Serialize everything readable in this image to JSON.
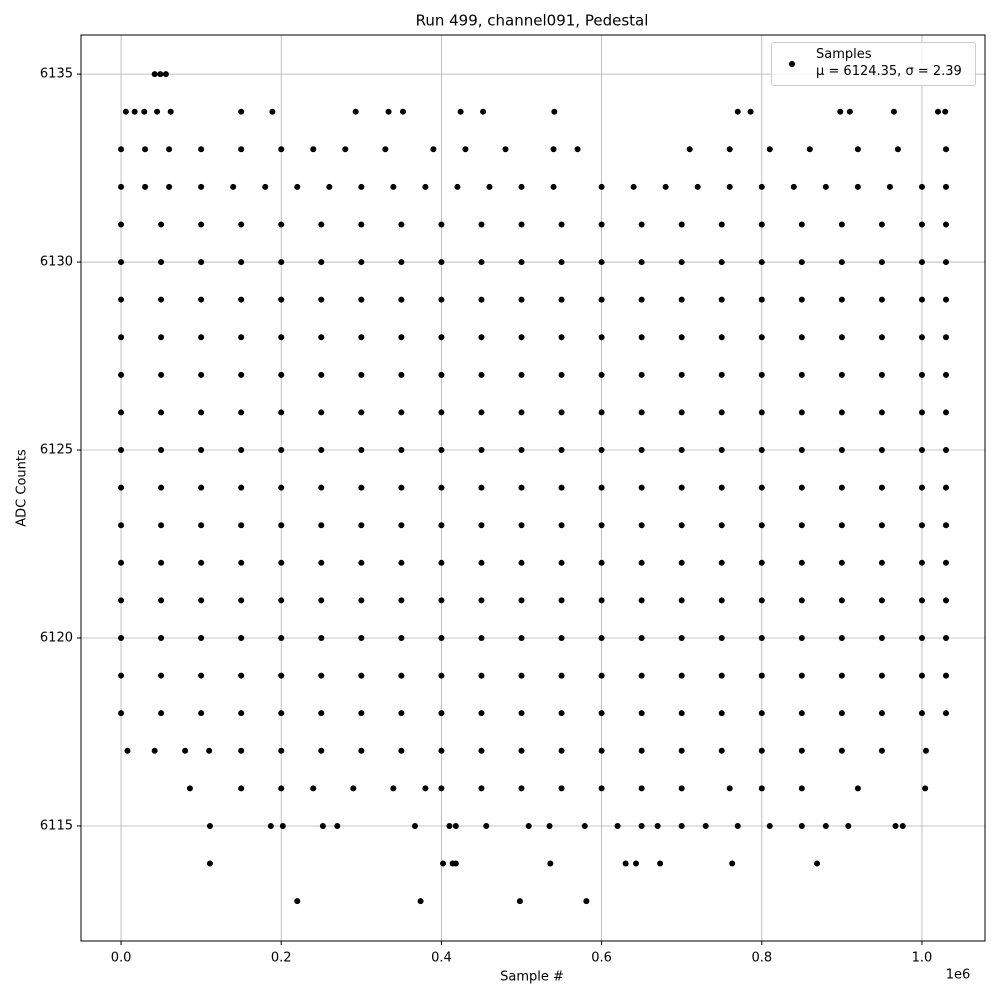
{
  "chart_data": {
    "type": "scatter",
    "title": "Run 499, channel091, Pedestal",
    "x_label": "Sample #",
    "y_label": "ADC Counts",
    "x_offset_label": "1e6",
    "xlim": [
      -50000,
      1078700
    ],
    "ylim": [
      6111.94,
      6136.04
    ],
    "xticks": [
      {
        "value": 0,
        "label": "0.0"
      },
      {
        "value": 200000,
        "label": "0.2"
      },
      {
        "value": 400000,
        "label": "0.4"
      },
      {
        "value": 600000,
        "label": "0.6"
      },
      {
        "value": 800000,
        "label": "0.8"
      },
      {
        "value": 1000000,
        "label": "1.0"
      }
    ],
    "yticks": [
      6115,
      6120,
      6125,
      6130,
      6135
    ],
    "grid": true,
    "legend": "upper right",
    "series": [
      {
        "name": "Samples\nμ = 6124.35, σ = 2.39",
        "color": "#000000",
        "x": [
          42000,
          49000,
          56000,
          6000,
          17000,
          29000,
          45000,
          62000,
          150000,
          189000,
          293000,
          334000,
          352000,
          424000,
          452000,
          541000,
          770000,
          786000,
          898000,
          910000,
          965000,
          1020000,
          1029000,
          0,
          30000,
          60000,
          100000,
          150000,
          200000,
          240000,
          280000,
          330000,
          390000,
          430000,
          480000,
          540000,
          570000,
          710000,
          760000,
          810000,
          860000,
          920000,
          970000,
          1030000,
          0,
          30000,
          60000,
          100000,
          140000,
          180000,
          220000,
          260000,
          300000,
          340000,
          380000,
          420000,
          460000,
          500000,
          540000,
          600000,
          640000,
          680000,
          720000,
          760000,
          800000,
          840000,
          880000,
          920000,
          960000,
          1000000,
          1030000,
          0,
          50000,
          100000,
          150000,
          200000,
          250000,
          300000,
          350000,
          400000,
          450000,
          500000,
          550000,
          600000,
          650000,
          700000,
          750000,
          800000,
          850000,
          900000,
          950000,
          1000000,
          1030000,
          0,
          50000,
          100000,
          150000,
          200000,
          250000,
          300000,
          350000,
          400000,
          450000,
          500000,
          550000,
          600000,
          650000,
          700000,
          750000,
          800000,
          850000,
          900000,
          950000,
          1000000,
          1030000,
          0,
          50000,
          100000,
          150000,
          200000,
          250000,
          300000,
          350000,
          400000,
          450000,
          500000,
          550000,
          600000,
          650000,
          700000,
          750000,
          800000,
          850000,
          900000,
          950000,
          1000000,
          1030000,
          0,
          50000,
          100000,
          150000,
          200000,
          250000,
          300000,
          350000,
          400000,
          450000,
          500000,
          550000,
          600000,
          650000,
          700000,
          750000,
          800000,
          850000,
          900000,
          950000,
          1000000,
          1030000,
          0,
          50000,
          100000,
          150000,
          200000,
          250000,
          300000,
          350000,
          400000,
          450000,
          500000,
          550000,
          600000,
          650000,
          700000,
          750000,
          800000,
          850000,
          900000,
          950000,
          1000000,
          1030000,
          0,
          50000,
          100000,
          150000,
          200000,
          250000,
          300000,
          350000,
          400000,
          450000,
          500000,
          550000,
          600000,
          650000,
          700000,
          750000,
          800000,
          850000,
          900000,
          950000,
          1000000,
          1030000,
          0,
          50000,
          100000,
          150000,
          200000,
          250000,
          300000,
          350000,
          400000,
          450000,
          500000,
          550000,
          600000,
          650000,
          700000,
          750000,
          800000,
          850000,
          900000,
          950000,
          1000000,
          1030000,
          0,
          50000,
          100000,
          150000,
          200000,
          250000,
          300000,
          350000,
          400000,
          450000,
          500000,
          550000,
          600000,
          650000,
          700000,
          750000,
          800000,
          850000,
          900000,
          950000,
          1000000,
          1030000,
          0,
          50000,
          100000,
          150000,
          200000,
          250000,
          300000,
          350000,
          400000,
          450000,
          500000,
          550000,
          600000,
          650000,
          700000,
          750000,
          800000,
          850000,
          900000,
          950000,
          1000000,
          1030000,
          0,
          50000,
          100000,
          150000,
          200000,
          250000,
          300000,
          350000,
          400000,
          450000,
          500000,
          550000,
          600000,
          650000,
          700000,
          750000,
          800000,
          850000,
          900000,
          950000,
          1000000,
          1030000,
          0,
          50000,
          100000,
          150000,
          200000,
          250000,
          300000,
          350000,
          400000,
          450000,
          500000,
          550000,
          600000,
          650000,
          700000,
          750000,
          800000,
          850000,
          900000,
          950000,
          1000000,
          1030000,
          0,
          50000,
          100000,
          150000,
          200000,
          250000,
          300000,
          350000,
          400000,
          450000,
          500000,
          550000,
          600000,
          650000,
          700000,
          750000,
          800000,
          850000,
          900000,
          950000,
          1000000,
          1030000,
          0,
          50000,
          100000,
          150000,
          200000,
          250000,
          300000,
          350000,
          400000,
          450000,
          500000,
          550000,
          600000,
          650000,
          700000,
          750000,
          800000,
          850000,
          900000,
          950000,
          1000000,
          1030000,
          0,
          50000,
          100000,
          150000,
          200000,
          250000,
          300000,
          350000,
          400000,
          450000,
          500000,
          550000,
          600000,
          650000,
          700000,
          750000,
          800000,
          850000,
          900000,
          950000,
          1000000,
          1030000,
          8000,
          42000,
          80000,
          110000,
          150000,
          200000,
          250000,
          300000,
          350000,
          400000,
          450000,
          500000,
          550000,
          600000,
          650000,
          700000,
          750000,
          800000,
          850000,
          900000,
          950000,
          1005000,
          86000,
          150000,
          200000,
          240000,
          290000,
          340000,
          380000,
          400000,
          450000,
          500000,
          550000,
          600000,
          650000,
          700000,
          760000,
          800000,
          850000,
          920000,
          1004000,
          111000,
          187000,
          202000,
          252000,
          270000,
          367000,
          410000,
          418000,
          456000,
          509000,
          535000,
          579000,
          620000,
          650000,
          670000,
          700000,
          730000,
          770000,
          810000,
          850000,
          880000,
          908000,
          967000,
          976000,
          111000,
          402000,
          414000,
          418000,
          536000,
          630000,
          643000,
          673000,
          763000,
          869000,
          220000,
          374000,
          498000,
          581000
        ],
        "values": [
          6135,
          6135,
          6135,
          6134,
          6134,
          6134,
          6134,
          6134,
          6134,
          6134,
          6134,
          6134,
          6134,
          6134,
          6134,
          6134,
          6134,
          6134,
          6134,
          6134,
          6134,
          6134,
          6134,
          6133,
          6133,
          6133,
          6133,
          6133,
          6133,
          6133,
          6133,
          6133,
          6133,
          6133,
          6133,
          6133,
          6133,
          6133,
          6133,
          6133,
          6133,
          6133,
          6133,
          6133,
          6132,
          6132,
          6132,
          6132,
          6132,
          6132,
          6132,
          6132,
          6132,
          6132,
          6132,
          6132,
          6132,
          6132,
          6132,
          6132,
          6132,
          6132,
          6132,
          6132,
          6132,
          6132,
          6132,
          6132,
          6132,
          6132,
          6132,
          6131,
          6131,
          6131,
          6131,
          6131,
          6131,
          6131,
          6131,
          6131,
          6131,
          6131,
          6131,
          6131,
          6131,
          6131,
          6131,
          6131,
          6131,
          6131,
          6131,
          6131,
          6131,
          6130,
          6130,
          6130,
          6130,
          6130,
          6130,
          6130,
          6130,
          6130,
          6130,
          6130,
          6130,
          6130,
          6130,
          6130,
          6130,
          6130,
          6130,
          6130,
          6130,
          6130,
          6130,
          6129,
          6129,
          6129,
          6129,
          6129,
          6129,
          6129,
          6129,
          6129,
          6129,
          6129,
          6129,
          6129,
          6129,
          6129,
          6129,
          6129,
          6129,
          6129,
          6129,
          6129,
          6129,
          6128,
          6128,
          6128,
          6128,
          6128,
          6128,
          6128,
          6128,
          6128,
          6128,
          6128,
          6128,
          6128,
          6128,
          6128,
          6128,
          6128,
          6128,
          6128,
          6128,
          6128,
          6128,
          6127,
          6127,
          6127,
          6127,
          6127,
          6127,
          6127,
          6127,
          6127,
          6127,
          6127,
          6127,
          6127,
          6127,
          6127,
          6127,
          6127,
          6127,
          6127,
          6127,
          6127,
          6127,
          6126,
          6126,
          6126,
          6126,
          6126,
          6126,
          6126,
          6126,
          6126,
          6126,
          6126,
          6126,
          6126,
          6126,
          6126,
          6126,
          6126,
          6126,
          6126,
          6126,
          6126,
          6126,
          6125,
          6125,
          6125,
          6125,
          6125,
          6125,
          6125,
          6125,
          6125,
          6125,
          6125,
          6125,
          6125,
          6125,
          6125,
          6125,
          6125,
          6125,
          6125,
          6125,
          6125,
          6125,
          6124,
          6124,
          6124,
          6124,
          6124,
          6124,
          6124,
          6124,
          6124,
          6124,
          6124,
          6124,
          6124,
          6124,
          6124,
          6124,
          6124,
          6124,
          6124,
          6124,
          6124,
          6124,
          6123,
          6123,
          6123,
          6123,
          6123,
          6123,
          6123,
          6123,
          6123,
          6123,
          6123,
          6123,
          6123,
          6123,
          6123,
          6123,
          6123,
          6123,
          6123,
          6123,
          6123,
          6123,
          6122,
          6122,
          6122,
          6122,
          6122,
          6122,
          6122,
          6122,
          6122,
          6122,
          6122,
          6122,
          6122,
          6122,
          6122,
          6122,
          6122,
          6122,
          6122,
          6122,
          6122,
          6122,
          6121,
          6121,
          6121,
          6121,
          6121,
          6121,
          6121,
          6121,
          6121,
          6121,
          6121,
          6121,
          6121,
          6121,
          6121,
          6121,
          6121,
          6121,
          6121,
          6121,
          6121,
          6121,
          6120,
          6120,
          6120,
          6120,
          6120,
          6120,
          6120,
          6120,
          6120,
          6120,
          6120,
          6120,
          6120,
          6120,
          6120,
          6120,
          6120,
          6120,
          6120,
          6120,
          6120,
          6120,
          6119,
          6119,
          6119,
          6119,
          6119,
          6119,
          6119,
          6119,
          6119,
          6119,
          6119,
          6119,
          6119,
          6119,
          6119,
          6119,
          6119,
          6119,
          6119,
          6119,
          6119,
          6119,
          6118,
          6118,
          6118,
          6118,
          6118,
          6118,
          6118,
          6118,
          6118,
          6118,
          6118,
          6118,
          6118,
          6118,
          6118,
          6118,
          6118,
          6118,
          6118,
          6118,
          6118,
          6118,
          6117,
          6117,
          6117,
          6117,
          6117,
          6117,
          6117,
          6117,
          6117,
          6117,
          6117,
          6117,
          6117,
          6117,
          6117,
          6117,
          6117,
          6117,
          6117,
          6117,
          6117,
          6117,
          6116,
          6116,
          6116,
          6116,
          6116,
          6116,
          6116,
          6116,
          6116,
          6116,
          6116,
          6116,
          6116,
          6116,
          6116,
          6116,
          6116,
          6116,
          6116,
          6115,
          6115,
          6115,
          6115,
          6115,
          6115,
          6115,
          6115,
          6115,
          6115,
          6115,
          6115,
          6115,
          6115,
          6115,
          6115,
          6115,
          6115,
          6115,
          6115,
          6115,
          6115,
          6115,
          6115,
          6114,
          6114,
          6114,
          6114,
          6114,
          6114,
          6114,
          6114,
          6114,
          6114,
          6113,
          6113,
          6113,
          6113
        ]
      }
    ]
  }
}
